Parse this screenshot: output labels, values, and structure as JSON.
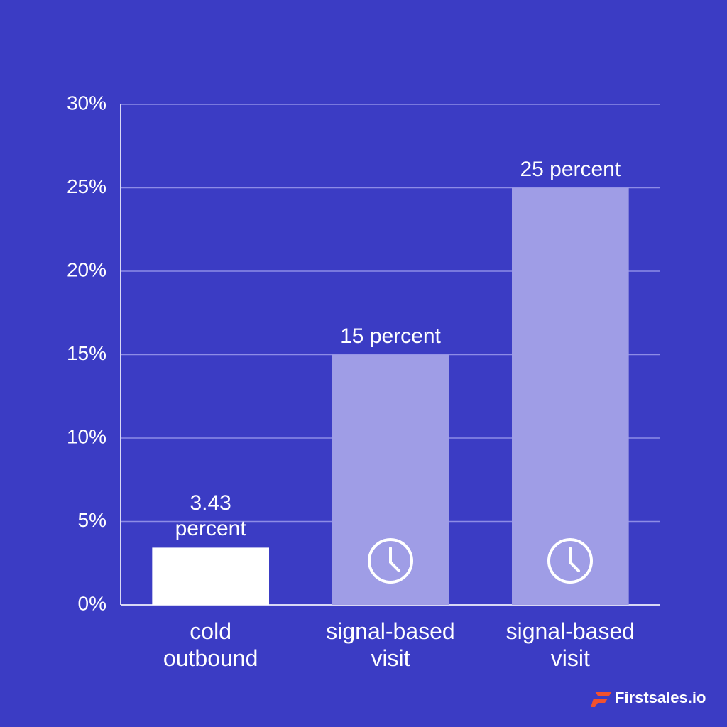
{
  "chart_data": {
    "type": "bar",
    "categories": [
      "cold outbound",
      "signal-based visit",
      "signal-based visit"
    ],
    "values": [
      3.43,
      15,
      25
    ],
    "value_labels": [
      "3.43 percent",
      "15 percent",
      "25 percent"
    ],
    "colors": [
      "#ffffff",
      "#9f9de6",
      "#9f9de6"
    ],
    "ylim": [
      0,
      30
    ],
    "yticks": [
      {
        "value": 0,
        "label": "0%"
      },
      {
        "value": 5,
        "label": "5%"
      },
      {
        "value": 10,
        "label": "10%"
      },
      {
        "value": 15,
        "label": "15%"
      },
      {
        "value": 20,
        "label": "20%"
      },
      {
        "value": 25,
        "label": "25%"
      },
      {
        "value": 30,
        "label": "30%"
      }
    ],
    "grid": true
  },
  "brand": "Firstsales.io"
}
